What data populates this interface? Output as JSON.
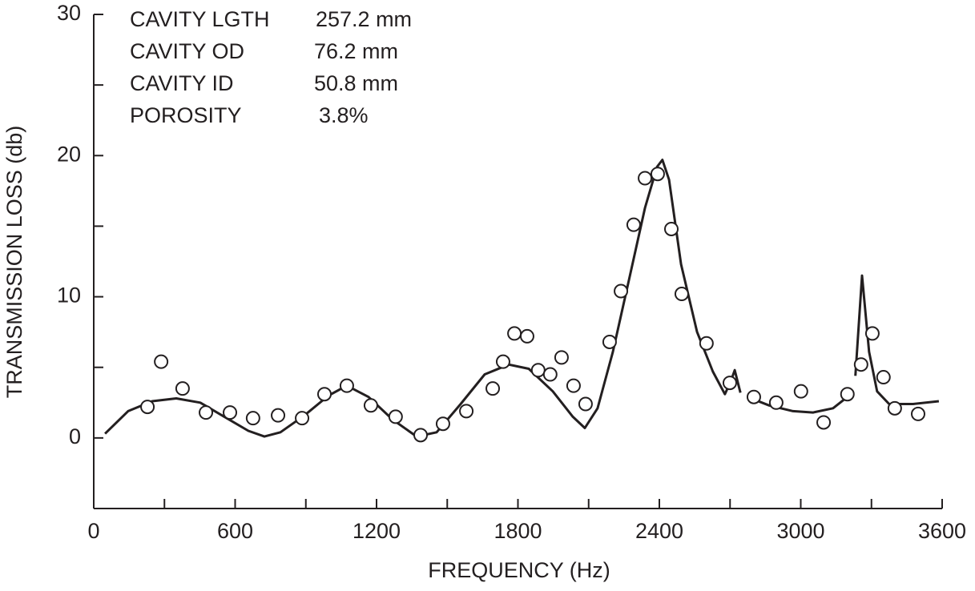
{
  "chart_data": {
    "type": "scatter",
    "x_label": "FREQUENCY (Hz)",
    "y_label": "TRANSMISSION LOSS (db)",
    "xlim": [
      0,
      3600
    ],
    "ylim": [
      -5,
      30
    ],
    "xticks": [
      0,
      600,
      1200,
      1800,
      2400,
      3000,
      3600
    ],
    "xminorticks": [
      300,
      900,
      1500,
      2100,
      2700,
      3300
    ],
    "yticks": [
      0,
      10,
      20,
      30
    ],
    "yminorticks": [
      -5,
      5,
      15,
      25
    ],
    "color": "#231f20",
    "annotations": [
      {
        "label": "CAVITY LGTH",
        "value": "257.2 mm"
      },
      {
        "label": "CAVITY OD",
        "value": "76.2 mm"
      },
      {
        "label": "CAVITY ID",
        "value": "50.8 mm"
      },
      {
        "label": "POROSITY",
        "value": "3.8%"
      }
    ],
    "points": {
      "x": [
        228,
        286,
        377,
        476,
        578,
        676,
        782,
        884,
        979,
        1074,
        1176,
        1281,
        1387,
        1482,
        1581,
        1693,
        1737,
        1785,
        1839,
        1886,
        1937,
        1985,
        2036,
        2087,
        2189,
        2237,
        2291,
        2339,
        2393,
        2451,
        2495,
        2600,
        2699,
        2801,
        2896,
        3001,
        3097,
        3198,
        3256,
        3304,
        3351,
        3399,
        3498
      ],
      "y": [
        2.2,
        5.4,
        3.5,
        1.8,
        1.8,
        1.4,
        1.6,
        1.4,
        3.1,
        3.7,
        2.3,
        1.5,
        0.2,
        1.0,
        1.9,
        3.5,
        5.4,
        7.4,
        7.2,
        4.8,
        4.5,
        5.7,
        3.7,
        2.4,
        6.8,
        10.4,
        15.1,
        18.4,
        18.7,
        14.8,
        10.2,
        6.7,
        3.9,
        2.9,
        2.5,
        3.3,
        1.1,
        3.1,
        5.2,
        7.4,
        4.3,
        2.1,
        1.7
      ]
    },
    "curve": {
      "x": [
        48,
        146,
        248,
        350,
        452,
        554,
        656,
        724,
        792,
        894,
        996,
        1074,
        1166,
        1268,
        1370,
        1455,
        1557,
        1659,
        1761,
        1846,
        1948,
        2033,
        2084,
        2138,
        2203,
        2271,
        2339,
        2390,
        2413,
        2441,
        2492,
        2560,
        2627,
        2678,
        2703,
        2720,
        2744,
        null,
        2774,
        2866,
        2967,
        3052,
        3137,
        3198,
        null,
        3232,
        3260,
        3290,
        3324,
        3375,
        3477,
        3586
      ],
      "y": [
        0.3,
        1.9,
        2.6,
        2.8,
        2.5,
        1.5,
        0.5,
        0.1,
        0.4,
        1.6,
        3.0,
        3.7,
        2.9,
        1.3,
        0.1,
        0.4,
        2.4,
        4.5,
        5.2,
        4.9,
        3.3,
        1.5,
        0.7,
        2.1,
        6.1,
        11.2,
        16.3,
        19.2,
        19.7,
        18.3,
        12.3,
        7.5,
        4.7,
        3.1,
        4.0,
        4.8,
        3.2,
        null,
        2.9,
        2.3,
        1.9,
        1.8,
        2.1,
        2.9,
        null,
        4.4,
        11.5,
        6.1,
        3.3,
        2.4,
        2.4,
        2.6
      ]
    }
  }
}
